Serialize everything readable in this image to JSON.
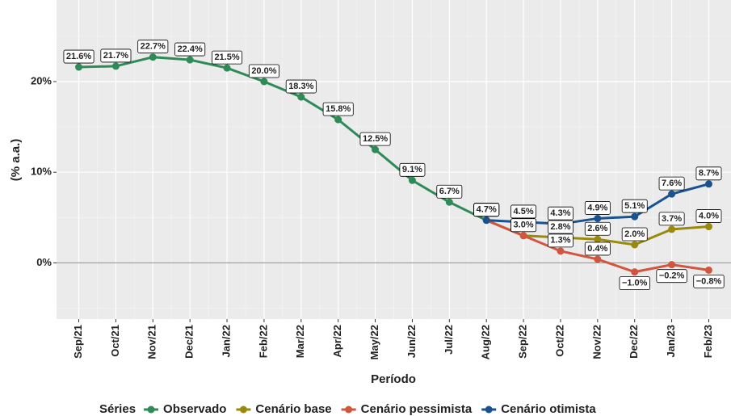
{
  "chart_data": {
    "type": "line",
    "y_label": "(% a.a.)",
    "x_label": "Período",
    "legend_title": "Séries",
    "legend_position": "bottom",
    "categories": [
      "Sep/21",
      "Oct/21",
      "Nov/21",
      "Dec/21",
      "Jan/22",
      "Feb/22",
      "Mar/22",
      "Apr/22",
      "May/22",
      "Jun/22",
      "Jul/22",
      "Aug/22",
      "Sep/22",
      "Oct/22",
      "Nov/22",
      "Dec/22",
      "Jan/23",
      "Feb/23"
    ],
    "ylim": [
      -6.2,
      29
    ],
    "yticks": [
      {
        "value": 0,
        "label": "0%"
      },
      {
        "value": 10,
        "label": "10%"
      },
      {
        "value": 20,
        "label": "20%"
      }
    ],
    "hline": 0,
    "grid": true,
    "series": [
      {
        "name": "Observado",
        "color": "#2e8b57",
        "values": [
          21.6,
          21.7,
          22.7,
          22.4,
          21.5,
          20.0,
          18.3,
          15.8,
          12.5,
          9.1,
          6.7,
          4.7,
          null,
          null,
          null,
          null,
          null,
          null
        ],
        "value_labels": [
          "21.6%",
          "21.7%",
          "22.7%",
          "22.4%",
          "21.5%",
          "20.0%",
          "18.3%",
          "15.8%",
          "12.5%",
          "9.1%",
          "6.7%",
          "4.7%",
          null,
          null,
          null,
          null,
          null,
          null
        ]
      },
      {
        "name": "Cenário base",
        "color": "#998a0c",
        "values": [
          null,
          null,
          null,
          null,
          null,
          null,
          null,
          null,
          null,
          null,
          null,
          4.7,
          3.0,
          2.8,
          2.6,
          2.0,
          3.7,
          4.0
        ],
        "value_labels": [
          null,
          null,
          null,
          null,
          null,
          null,
          null,
          null,
          null,
          null,
          null,
          "4.7%",
          "3.0%",
          "2.8%",
          "2.6%",
          "2.0%",
          "3.7%",
          "4.0%"
        ]
      },
      {
        "name": "Cenário pessimista",
        "color": "#d1553f",
        "values": [
          null,
          null,
          null,
          null,
          null,
          null,
          null,
          null,
          null,
          null,
          null,
          4.7,
          3.0,
          1.3,
          0.4,
          -1.0,
          -0.2,
          -0.8
        ],
        "value_labels": [
          null,
          null,
          null,
          null,
          null,
          null,
          null,
          null,
          null,
          null,
          null,
          "4.7%",
          "3.0%",
          "1.3%",
          "0.4%",
          "−1.0%",
          "−0.2%",
          "−0.8%"
        ]
      },
      {
        "name": "Cenário otimista",
        "color": "#1a5290",
        "values": [
          null,
          null,
          null,
          null,
          null,
          null,
          null,
          null,
          null,
          null,
          null,
          4.7,
          4.5,
          4.3,
          4.9,
          5.1,
          7.6,
          8.7
        ],
        "value_labels": [
          null,
          null,
          null,
          null,
          null,
          null,
          null,
          null,
          null,
          null,
          null,
          "4.7%",
          "4.5%",
          "4.3%",
          "4.9%",
          "5.1%",
          "7.6%",
          "8.7%"
        ]
      }
    ]
  }
}
